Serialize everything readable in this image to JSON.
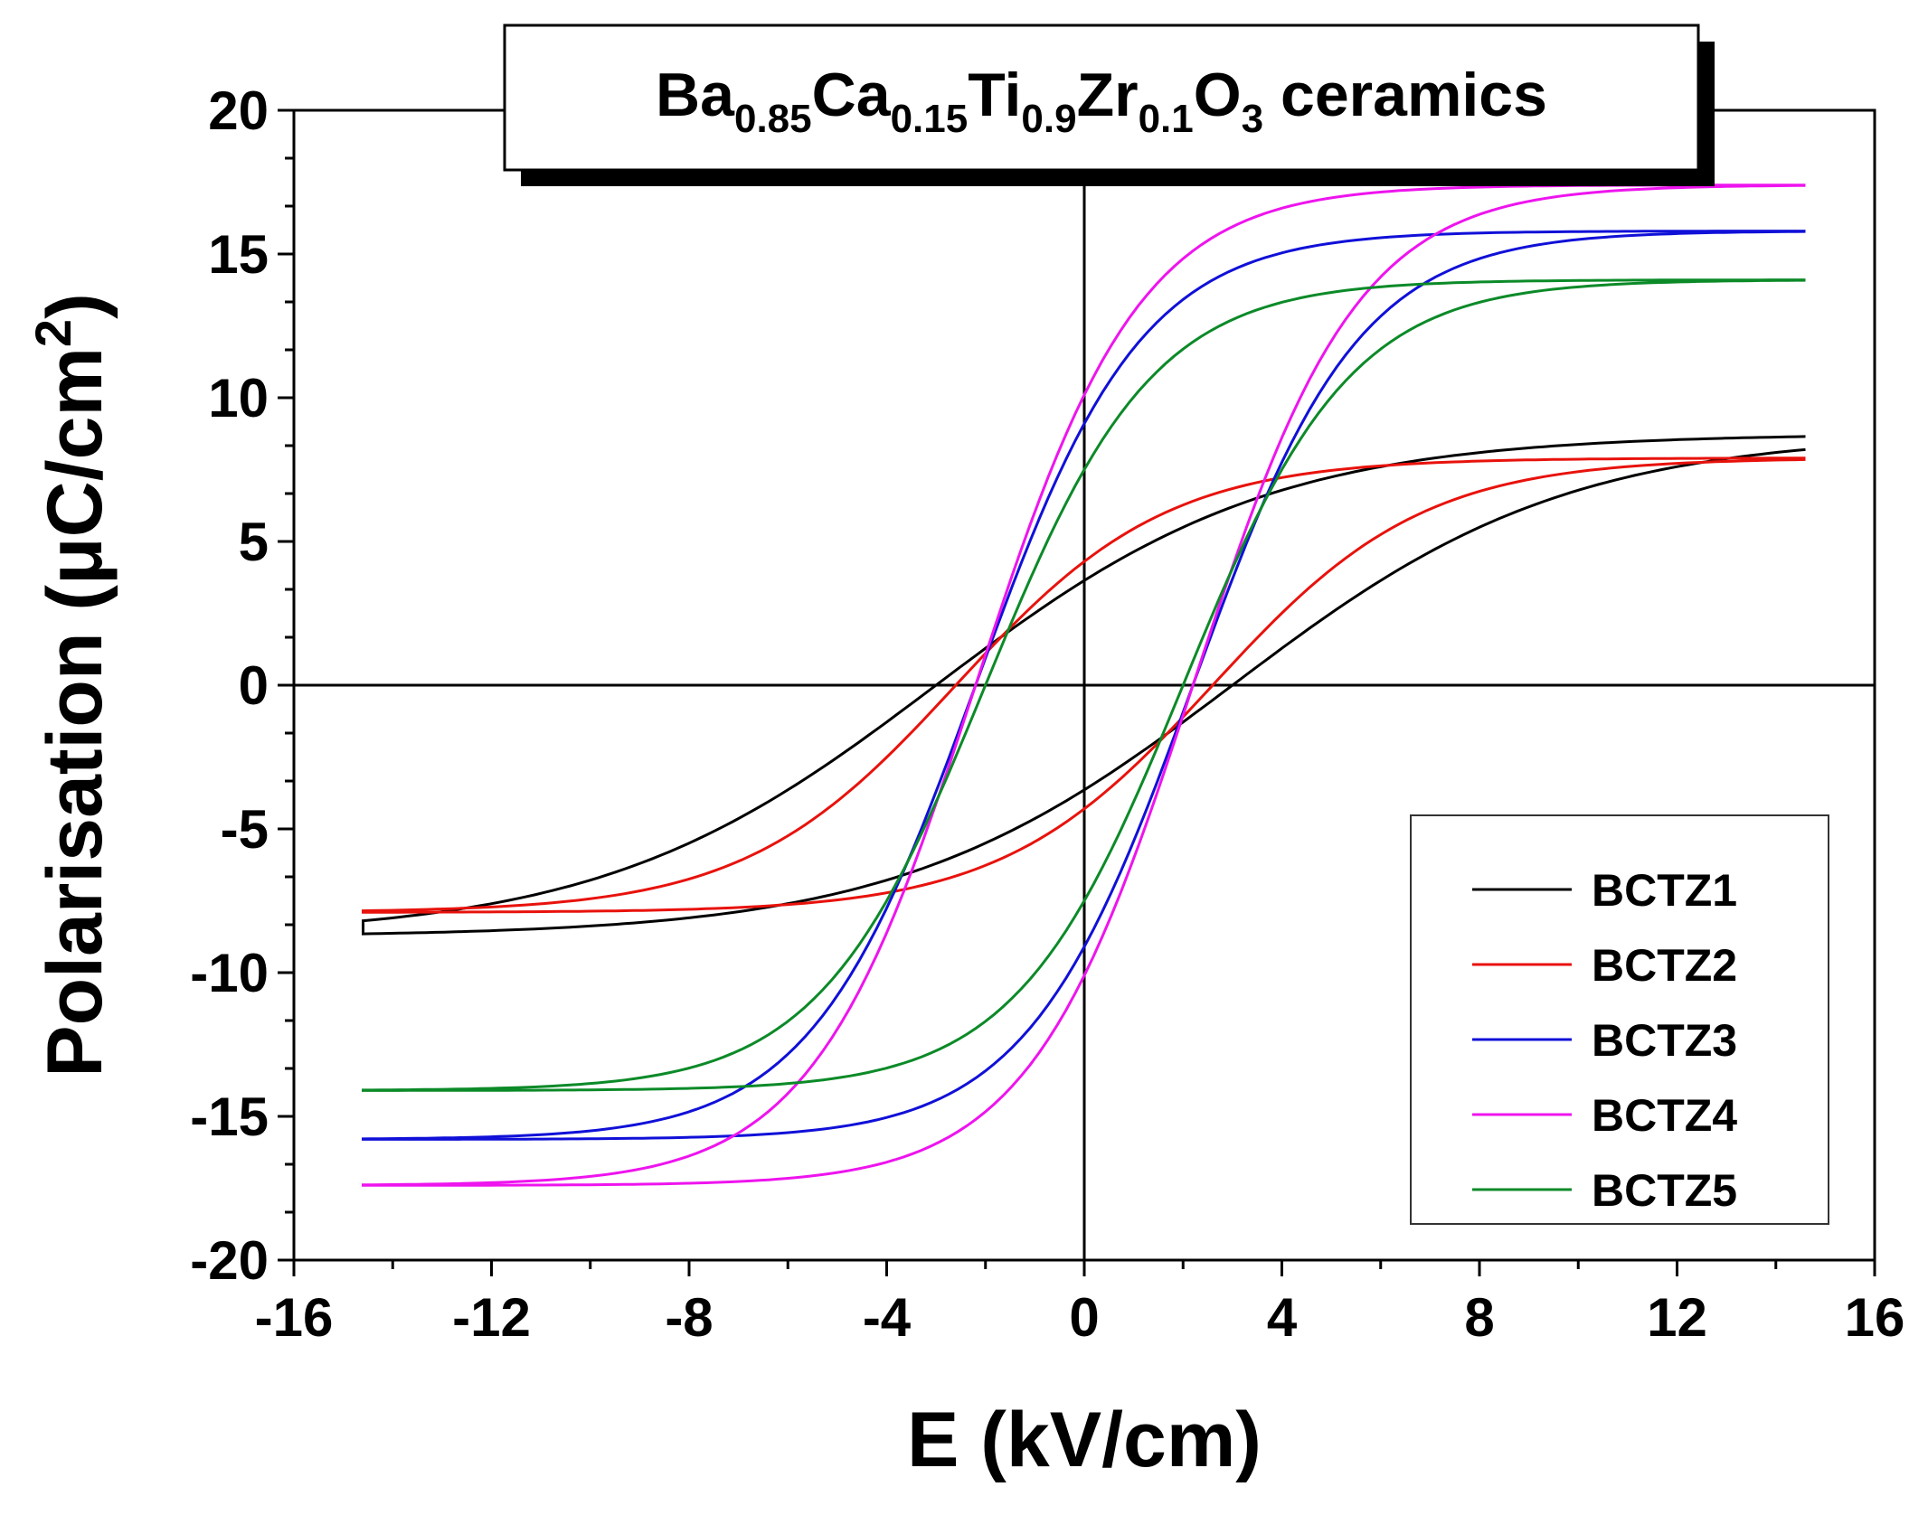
{
  "chart_data": {
    "type": "line",
    "title_parts": [
      {
        "text": "Ba",
        "sub": false
      },
      {
        "text": "0.85",
        "sub": true
      },
      {
        "text": "Ca",
        "sub": false
      },
      {
        "text": "0.15",
        "sub": true
      },
      {
        "text": "Ti",
        "sub": false
      },
      {
        "text": "0.9",
        "sub": true
      },
      {
        "text": "Zr",
        "sub": false
      },
      {
        "text": "0.1",
        "sub": true
      },
      {
        "text": "O",
        "sub": false
      },
      {
        "text": "3",
        "sub": true
      },
      {
        "text": " ceramics",
        "sub": false
      }
    ],
    "xlabel": "E (kV/cm)",
    "ylabel_parts": [
      {
        "text": "Polarisation (",
        "sup": false
      },
      {
        "text": "μ",
        "sup": false
      },
      {
        "text": "C/cm",
        "sup": false
      },
      {
        "text": "2",
        "sup": true
      },
      {
        "text": ")",
        "sup": false
      }
    ],
    "xlim": [
      -16,
      16
    ],
    "ylim": [
      -20,
      20
    ],
    "xticks": [
      -16,
      -12,
      -8,
      -4,
      0,
      4,
      8,
      12,
      16
    ],
    "yticks": [
      -20,
      -15,
      -10,
      -5,
      0,
      5,
      10,
      15,
      20
    ],
    "xtick_labels": [
      "-16",
      "-12",
      "-8",
      "-4",
      "0",
      "4",
      "8",
      "12",
      "16"
    ],
    "ytick_labels": [
      "-20",
      "-15",
      "-10",
      "-5",
      "0",
      "5",
      "10",
      "15",
      "20"
    ],
    "legend_position": "lower-right",
    "series": [
      {
        "name": "BCTZ1",
        "color": "#000000",
        "emax": 14.6,
        "pmax": 8.65,
        "ec": 3.0,
        "pr": 3.6
      },
      {
        "name": "BCTZ2",
        "color": "#e8120c",
        "emax": 14.6,
        "pmax": 7.9,
        "ec": 2.6,
        "pr": 4.3
      },
      {
        "name": "BCTZ3",
        "color": "#1010d8",
        "emax": 14.6,
        "pmax": 15.8,
        "ec": 2.2,
        "pr": 9.1
      },
      {
        "name": "BCTZ4",
        "color": "#ee14ee",
        "emax": 14.6,
        "pmax": 17.4,
        "ec": 2.2,
        "pr": 10.1
      },
      {
        "name": "BCTZ5",
        "color": "#0c8a28",
        "emax": 14.6,
        "pmax": 14.1,
        "ec": 2.0,
        "pr": 7.5
      }
    ]
  }
}
